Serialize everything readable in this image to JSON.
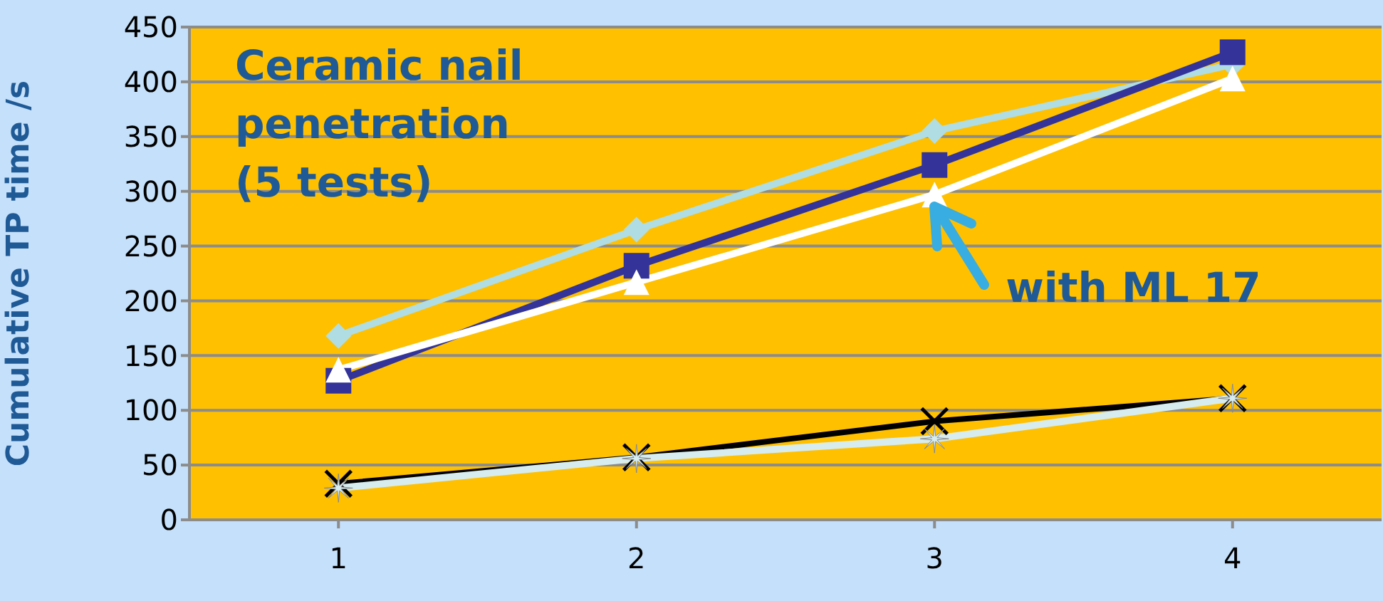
{
  "chart_data": {
    "type": "line",
    "title": "Ceramic nail penetration (5 tests)",
    "ylabel": "Cumulative TP time /s",
    "categories": [
      "1",
      "2",
      "3",
      "4"
    ],
    "series": [
      {
        "color": "#b0dde4",
        "marker": "diamond",
        "values": [
          168,
          265,
          355,
          416
        ]
      },
      {
        "color": "#333399",
        "marker": "square",
        "values": [
          127,
          232,
          324,
          427
        ]
      },
      {
        "color": "#ffffff",
        "marker": "triangle",
        "values": [
          137,
          217,
          297,
          403
        ]
      },
      {
        "color": "#000000",
        "marker": "cross",
        "values": [
          33,
          57,
          90,
          111
        ]
      },
      {
        "color": "#d6ecef",
        "marker": "star",
        "values": [
          29,
          56,
          74,
          111
        ]
      }
    ],
    "annotations": [
      {
        "text": "with ML 17",
        "x": "3",
        "y": 297
      }
    ],
    "ylim": [
      0,
      450
    ],
    "yticks": [
      0,
      50,
      100,
      150,
      200,
      250,
      300,
      350,
      400,
      450
    ],
    "grid": "y",
    "legend": false
  }
}
